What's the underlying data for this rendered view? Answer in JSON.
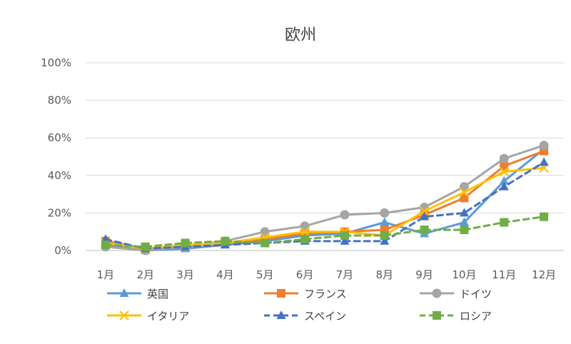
{
  "chart_data": {
    "type": "line",
    "title": "欧州",
    "categories": [
      "1月",
      "2月",
      "3月",
      "4月",
      "5月",
      "6月",
      "7月",
      "8月",
      "9月",
      "10月",
      "11月",
      "12月"
    ],
    "ylim": [
      0,
      100
    ],
    "yticks": [
      "0%",
      "20%",
      "40%",
      "60%",
      "80%",
      "100%"
    ],
    "y_unit": "%",
    "grid": true,
    "legend_position": "bottom",
    "series": [
      {
        "name": "英国",
        "color": "#5B9BD5",
        "marker": "triangle",
        "dash": false,
        "values": [
          3,
          0,
          1,
          3,
          5,
          8,
          9,
          15,
          9,
          15,
          37,
          54
        ]
      },
      {
        "name": "フランス",
        "color": "#ED7D31",
        "marker": "square",
        "dash": false,
        "values": [
          5,
          1,
          3,
          4,
          6,
          9,
          10,
          11,
          19,
          28,
          45,
          53
        ]
      },
      {
        "name": "ドイツ",
        "color": "#A5A5A5",
        "marker": "circle",
        "dash": false,
        "values": [
          2,
          0,
          2,
          5,
          10,
          13,
          19,
          20,
          23,
          34,
          49,
          56
        ]
      },
      {
        "name": "イタリア",
        "color": "#FFC000",
        "marker": "x",
        "dash": false,
        "values": [
          4,
          1,
          3,
          4,
          7,
          10,
          10,
          8,
          21,
          31,
          42,
          44
        ]
      },
      {
        "name": "スペイン",
        "color": "#4472C4",
        "marker": "triangle",
        "dash": true,
        "values": [
          6,
          1,
          2,
          3,
          4,
          5,
          5,
          5,
          18,
          20,
          34,
          47
        ]
      },
      {
        "name": "ロシア",
        "color": "#70AD47",
        "marker": "square",
        "dash": true,
        "values": [
          3,
          2,
          4,
          5,
          4,
          6,
          8,
          8,
          11,
          11,
          15,
          18
        ]
      }
    ]
  }
}
